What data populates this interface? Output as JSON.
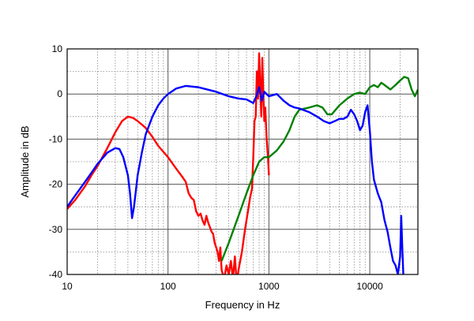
{
  "chart_data": {
    "type": "line",
    "title": "",
    "xlabel": "Frequency in Hz",
    "ylabel": "Amplitude in dB",
    "xscale": "log",
    "xlim": [
      10,
      30000
    ],
    "ylim": [
      -40,
      10
    ],
    "grid": true,
    "legend": "none",
    "xticks": [
      {
        "value": 10,
        "label": "10"
      },
      {
        "value": 100,
        "label": "100"
      },
      {
        "value": 1000,
        "label": "1000"
      },
      {
        "value": 10000,
        "label": "10000"
      }
    ],
    "yticks": [
      {
        "value": 10,
        "label": "10"
      },
      {
        "value": 0,
        "label": "0"
      },
      {
        "value": -10,
        "label": "-10"
      },
      {
        "value": -20,
        "label": "-20"
      },
      {
        "value": -30,
        "label": "-30"
      },
      {
        "value": -40,
        "label": "-40"
      }
    ],
    "series": [
      {
        "color": "#ff0000",
        "points": [
          [
            10,
            -25.5
          ],
          [
            12,
            -23.5
          ],
          [
            15,
            -20.5
          ],
          [
            18,
            -17.5
          ],
          [
            20,
            -16
          ],
          [
            25,
            -12
          ],
          [
            30,
            -8.5
          ],
          [
            35,
            -6
          ],
          [
            40,
            -5
          ],
          [
            45,
            -5.3
          ],
          [
            50,
            -6
          ],
          [
            60,
            -7.5
          ],
          [
            70,
            -9.5
          ],
          [
            80,
            -11.5
          ],
          [
            100,
            -14
          ],
          [
            120,
            -16.5
          ],
          [
            140,
            -18.5
          ],
          [
            150,
            -19.5
          ],
          [
            160,
            -22
          ],
          [
            170,
            -23
          ],
          [
            180,
            -23.5
          ],
          [
            190,
            -26
          ],
          [
            200,
            -27
          ],
          [
            210,
            -26.5
          ],
          [
            220,
            -28
          ],
          [
            230,
            -29
          ],
          [
            240,
            -27
          ],
          [
            250,
            -28.5
          ],
          [
            260,
            -29.5
          ],
          [
            270,
            -30.5
          ],
          [
            280,
            -31
          ],
          [
            290,
            -33
          ],
          [
            300,
            -34
          ],
          [
            310,
            -35
          ],
          [
            320,
            -37
          ],
          [
            330,
            -34
          ],
          [
            340,
            -39
          ],
          [
            360,
            -41
          ],
          [
            380,
            -38
          ],
          [
            400,
            -40
          ],
          [
            420,
            -37
          ],
          [
            440,
            -41
          ],
          [
            460,
            -36
          ],
          [
            480,
            -42
          ],
          [
            500,
            -39
          ],
          [
            540,
            -35
          ],
          [
            580,
            -30
          ],
          [
            620,
            -26
          ],
          [
            650,
            -23
          ],
          [
            680,
            -21
          ],
          [
            700,
            -14
          ],
          [
            720,
            -6
          ],
          [
            740,
            -5
          ],
          [
            760,
            5
          ],
          [
            780,
            -1
          ],
          [
            800,
            9
          ],
          [
            820,
            2
          ],
          [
            840,
            -5
          ],
          [
            860,
            8
          ],
          [
            880,
            0
          ],
          [
            900,
            -6
          ],
          [
            920,
            -3
          ],
          [
            950,
            -10
          ],
          [
            980,
            -14
          ],
          [
            1000,
            -18
          ]
        ]
      },
      {
        "color": "#008000",
        "points": [
          [
            340,
            -37
          ],
          [
            400,
            -33
          ],
          [
            500,
            -27
          ],
          [
            600,
            -22
          ],
          [
            700,
            -18
          ],
          [
            800,
            -15
          ],
          [
            900,
            -14
          ],
          [
            1000,
            -14
          ],
          [
            1200,
            -12.5
          ],
          [
            1400,
            -10.5
          ],
          [
            1600,
            -8
          ],
          [
            1800,
            -5
          ],
          [
            2000,
            -3.5
          ],
          [
            2500,
            -3
          ],
          [
            3000,
            -2.5
          ],
          [
            3400,
            -3
          ],
          [
            3800,
            -4.5
          ],
          [
            4200,
            -4.5
          ],
          [
            5000,
            -2.5
          ],
          [
            6000,
            -1
          ],
          [
            7000,
            0
          ],
          [
            8000,
            0.3
          ],
          [
            9000,
            0
          ],
          [
            10000,
            1.5
          ],
          [
            11000,
            2
          ],
          [
            12000,
            1.5
          ],
          [
            13000,
            2.5
          ],
          [
            14000,
            2
          ],
          [
            16000,
            1
          ],
          [
            18000,
            2
          ],
          [
            20000,
            3
          ],
          [
            22000,
            3.8
          ],
          [
            24000,
            3.5
          ],
          [
            26000,
            1
          ],
          [
            28000,
            -0.5
          ],
          [
            30000,
            1
          ]
        ]
      },
      {
        "color": "#0000ff",
        "points": [
          [
            10,
            -25
          ],
          [
            12,
            -22.5
          ],
          [
            15,
            -19.5
          ],
          [
            18,
            -17
          ],
          [
            20,
            -15.5
          ],
          [
            25,
            -13
          ],
          [
            30,
            -12
          ],
          [
            33,
            -12.2
          ],
          [
            36,
            -14
          ],
          [
            40,
            -18
          ],
          [
            42,
            -22
          ],
          [
            44,
            -27.5
          ],
          [
            46,
            -25
          ],
          [
            50,
            -18
          ],
          [
            55,
            -13
          ],
          [
            60,
            -9
          ],
          [
            70,
            -5
          ],
          [
            80,
            -2.5
          ],
          [
            90,
            -1
          ],
          [
            100,
            0
          ],
          [
            120,
            1.2
          ],
          [
            150,
            1.8
          ],
          [
            200,
            1.5
          ],
          [
            300,
            0.5
          ],
          [
            400,
            -0.5
          ],
          [
            500,
            -1
          ],
          [
            600,
            -1.2
          ],
          [
            700,
            -2
          ],
          [
            750,
            -0.5
          ],
          [
            800,
            1.5
          ],
          [
            850,
            -1.5
          ],
          [
            900,
            0.5
          ],
          [
            1000,
            -0.5
          ],
          [
            1200,
            0
          ],
          [
            1400,
            -1.5
          ],
          [
            1600,
            -2.5
          ],
          [
            1800,
            -3
          ],
          [
            2000,
            -3.2
          ],
          [
            2500,
            -4
          ],
          [
            3000,
            -5
          ],
          [
            3500,
            -6
          ],
          [
            4000,
            -6.5
          ],
          [
            4500,
            -6
          ],
          [
            5000,
            -5.5
          ],
          [
            5500,
            -5.5
          ],
          [
            6000,
            -5
          ],
          [
            6500,
            -3.5
          ],
          [
            7000,
            -4.5
          ],
          [
            7500,
            -6
          ],
          [
            8000,
            -8
          ],
          [
            8500,
            -7
          ],
          [
            9000,
            -4
          ],
          [
            9500,
            -2.5
          ],
          [
            10000,
            -8
          ],
          [
            10500,
            -15
          ],
          [
            11000,
            -19
          ],
          [
            12000,
            -22
          ],
          [
            13000,
            -24
          ],
          [
            14000,
            -28
          ],
          [
            15000,
            -30.5
          ],
          [
            16000,
            -34
          ],
          [
            17000,
            -37
          ],
          [
            18000,
            -38
          ],
          [
            19000,
            -40
          ],
          [
            20000,
            -36
          ],
          [
            20500,
            -27
          ],
          [
            21000,
            -34
          ],
          [
            21500,
            -40
          ]
        ]
      }
    ]
  }
}
